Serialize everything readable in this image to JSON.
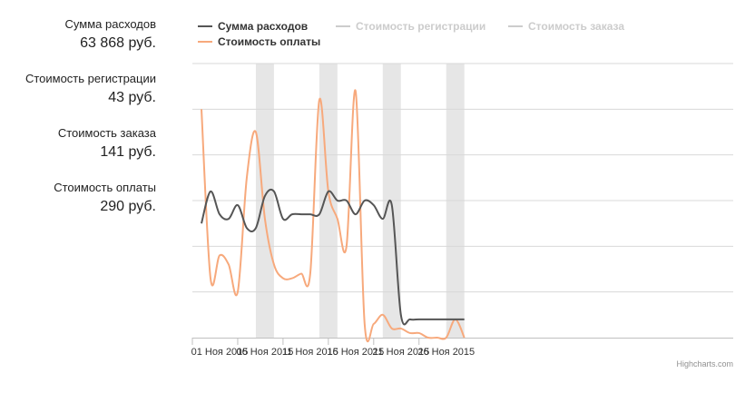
{
  "summary": {
    "items": [
      {
        "label": "Сумма расходов",
        "value": "63 868 руб."
      },
      {
        "label": "Стоимость регистрации",
        "value": "43 руб."
      },
      {
        "label": "Стоимость заказа",
        "value": "141 руб."
      },
      {
        "label": "Стоимость оплаты",
        "value": "290 руб."
      }
    ]
  },
  "credits": "Highcharts.com",
  "colors": {
    "series_total": "#555555",
    "series_payment": "#f7a97c",
    "series_hidden": "#cccccc",
    "band": "#e6e6e6",
    "grid": "#d8d8d8"
  },
  "chart_data": {
    "type": "line",
    "title": "",
    "xlabel": "",
    "ylabel": "",
    "legend_position": "top",
    "grid": true,
    "x_start": "01 Ноя 2015",
    "x_ticks": [
      "01 Ноя 2015",
      "06 Ноя 2015",
      "11 Ноя 2015",
      "16 Ноя 2015",
      "21 Ноя 2015",
      "26 Ноя 2015"
    ],
    "x_tick_days": [
      0,
      5,
      10,
      15,
      20,
      25
    ],
    "ylim": [
      0,
      6
    ],
    "weekend_bands": [
      [
        6,
        8
      ],
      [
        13,
        15
      ],
      [
        20,
        22
      ],
      [
        27,
        29
      ]
    ],
    "legend": [
      {
        "name": "Сумма расходов",
        "visible": true
      },
      {
        "name": "Стоимость регистрации",
        "visible": false
      },
      {
        "name": "Стоимость заказа",
        "visible": false
      },
      {
        "name": "Стоимость оплаты",
        "visible": true
      }
    ],
    "series": [
      {
        "name": "Сумма расходов",
        "values": [
          2.5,
          3.2,
          2.7,
          2.6,
          2.9,
          2.4,
          2.4,
          3.1,
          3.2,
          2.6,
          2.7,
          2.7,
          2.7,
          2.7,
          3.2,
          3.0,
          3.0,
          2.7,
          3.0,
          2.9,
          2.6,
          2.9,
          0.5,
          0.4,
          0.4,
          0.4,
          0.4,
          0.4,
          0.4,
          0.4
        ]
      },
      {
        "name": "Стоимость оплаты",
        "values": [
          5.0,
          1.3,
          1.8,
          1.6,
          1.0,
          3.5,
          4.5,
          2.6,
          1.6,
          1.3,
          1.3,
          1.4,
          1.4,
          5.2,
          3.2,
          2.6,
          2.0,
          5.4,
          0.3,
          0.3,
          0.5,
          0.2,
          0.2,
          0.1,
          0.1,
          0.0,
          0.0,
          0.0,
          0.4,
          0.0
        ]
      }
    ]
  }
}
